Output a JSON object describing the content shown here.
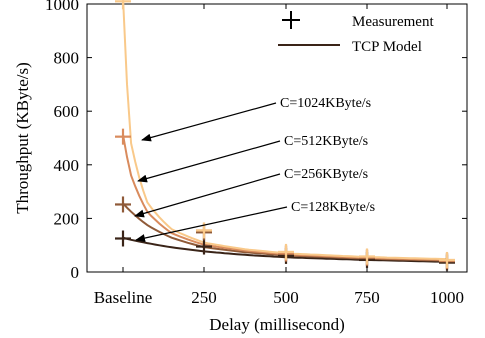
{
  "chart_data": {
    "type": "line",
    "title": "",
    "xlabel": "Delay (millisecond)",
    "ylabel": "Throughput (KByte/s)",
    "x_categories": [
      "Baseline",
      "250",
      "500",
      "750",
      "1000"
    ],
    "ylim": [
      0,
      1000
    ],
    "yticks": [
      0,
      200,
      400,
      600,
      800,
      1000
    ],
    "grid": false,
    "legend": {
      "position": "top-right",
      "entries": [
        {
          "label": "Measurement",
          "marker": "+"
        },
        {
          "label": "TCP Model",
          "marker": "line"
        }
      ]
    },
    "series": [
      {
        "name": "C=1024KByte/s",
        "color": "#f9c98a",
        "measurement": [
          1010,
          155,
          75,
          58,
          45
        ],
        "model_points": [
          [
            0,
            1024
          ],
          [
            0.1,
            480
          ],
          [
            0.3,
            260
          ],
          [
            0.6,
            160
          ],
          [
            1,
            110
          ],
          [
            1.5,
            85
          ],
          [
            2,
            70
          ],
          [
            3,
            56
          ],
          [
            4,
            48
          ]
        ]
      },
      {
        "name": "C=512KByte/s",
        "color": "#d98b5d",
        "measurement": [
          505,
          155,
          70,
          55,
          42
        ],
        "model_points": [
          [
            0,
            512
          ],
          [
            0.1,
            360
          ],
          [
            0.3,
            225
          ],
          [
            0.6,
            145
          ],
          [
            1,
            102
          ],
          [
            1.5,
            80
          ],
          [
            2,
            66
          ],
          [
            3,
            53
          ],
          [
            4,
            45
          ]
        ]
      },
      {
        "name": "C=256KByte/s",
        "color": "#8f5a38",
        "measurement": [
          252,
          148,
          68,
          52,
          40
        ],
        "model_points": [
          [
            0,
            256
          ],
          [
            0.1,
            225
          ],
          [
            0.3,
            175
          ],
          [
            0.6,
            128
          ],
          [
            1,
            93
          ],
          [
            1.5,
            74
          ],
          [
            2,
            62
          ],
          [
            3,
            50
          ],
          [
            4,
            42
          ]
        ]
      },
      {
        "name": "C=128KByte/s",
        "color": "#3a2418",
        "measurement": [
          125,
          95,
          60,
          45,
          35
        ],
        "model_points": [
          [
            0,
            128
          ],
          [
            0.1,
            120
          ],
          [
            0.3,
            108
          ],
          [
            0.6,
            92
          ],
          [
            1,
            77
          ],
          [
            1.5,
            64
          ],
          [
            2,
            55
          ],
          [
            3,
            45
          ],
          [
            4,
            38
          ]
        ]
      }
    ],
    "annotations": [
      {
        "text": "C=1024KByte/s",
        "target_series": 0
      },
      {
        "text": "C=512KByte/s",
        "target_series": 1
      },
      {
        "text": "C=256KByte/s",
        "target_series": 2
      },
      {
        "text": "C=128KByte/s",
        "target_series": 3
      }
    ]
  }
}
